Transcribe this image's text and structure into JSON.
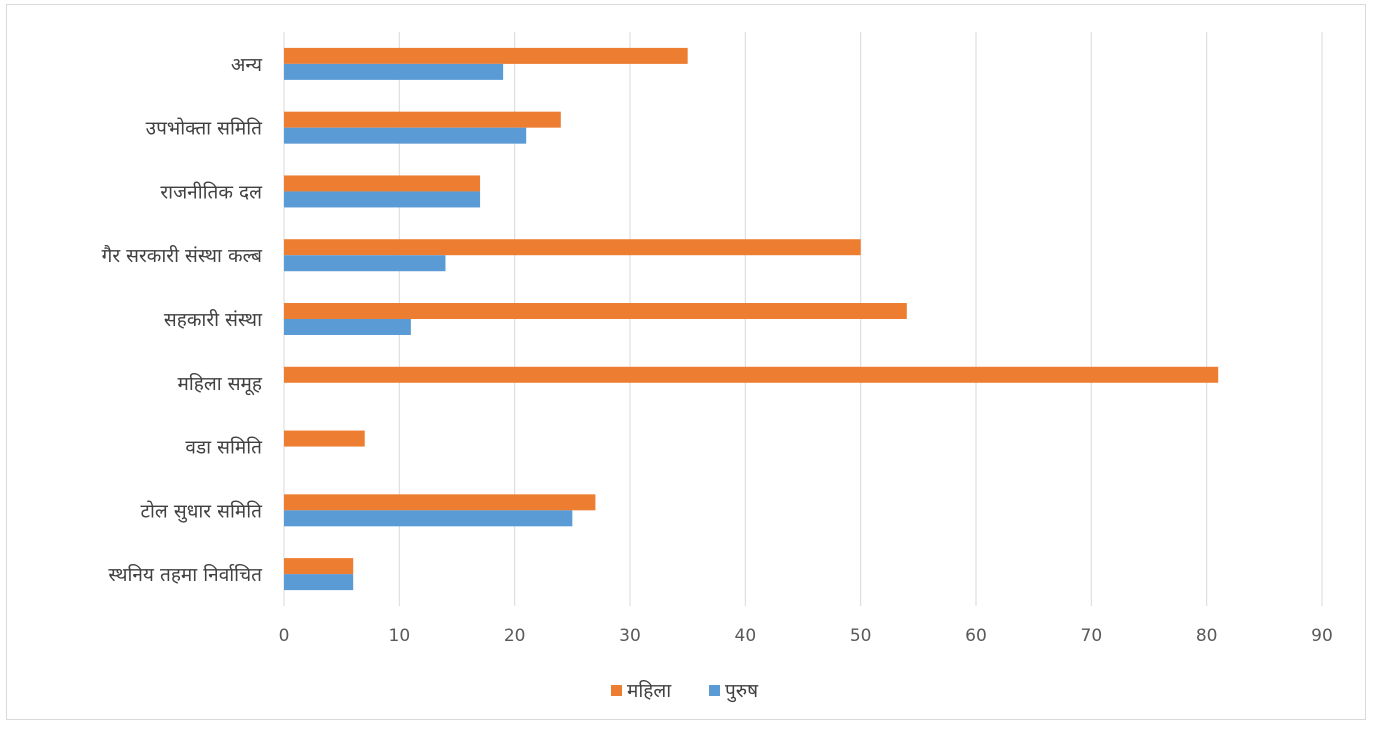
{
  "chart_data": {
    "type": "bar",
    "orientation": "horizontal",
    "categories": [
      "अन्य",
      "उपभोक्ता समिति",
      "राजनीतिक दल",
      "गैर सरकारी संस्था कल्ब",
      "सहकारी संस्था",
      "महिला समूह",
      "वडा समिति",
      "टोल सुधार समिति",
      "स्थनिय तहमा निर्वाचित"
    ],
    "series": [
      {
        "name": "महिला",
        "color": "#ed7d31",
        "values": [
          35,
          24,
          17,
          50,
          54,
          81,
          7,
          27,
          6
        ]
      },
      {
        "name": "पुरुष",
        "color": "#5b9bd5",
        "values": [
          19,
          21,
          17,
          14,
          11,
          0,
          0,
          25,
          6
        ]
      }
    ],
    "xlim": [
      0,
      90
    ],
    "xticks": [
      "0",
      "10",
      "20",
      "30",
      "40",
      "50",
      "60",
      "70",
      "80",
      "90"
    ],
    "grid": "vertical",
    "legend": "bottom"
  }
}
